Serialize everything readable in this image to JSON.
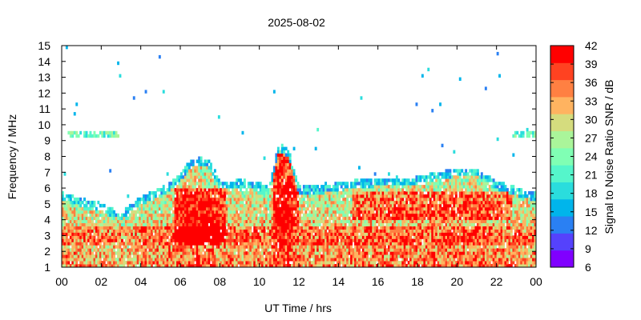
{
  "chart_data": {
    "type": "heatmap",
    "title": "2025-08-02",
    "xlabel": "UT Time / hrs",
    "ylabel": "Frequency / MHz",
    "colorbar_label": "Signal to Noise Ratio SNR / dB",
    "xlim": [
      0,
      24
    ],
    "ylim": [
      1,
      15
    ],
    "x_tick_labels": [
      "00",
      "02",
      "04",
      "06",
      "08",
      "10",
      "12",
      "14",
      "16",
      "18",
      "20",
      "22",
      "00"
    ],
    "y_tick_labels": [
      "1",
      "2",
      "3",
      "4",
      "5",
      "6",
      "7",
      "8",
      "9",
      "10",
      "11",
      "12",
      "13",
      "14",
      "15"
    ],
    "colorbar_ticks": [
      "6",
      "9",
      "12",
      "15",
      "18",
      "21",
      "24",
      "27",
      "30",
      "33",
      "36",
      "39",
      "42"
    ],
    "colorbar_range": [
      6,
      42
    ],
    "colormap": [
      "#8000ff",
      "#5542fc",
      "#2a80f3",
      "#00b5eb",
      "#2adddd",
      "#55f6cb",
      "#80ffb4",
      "#aaf59a",
      "#d5dc7e",
      "#ffb360",
      "#ff8042",
      "#ff4221",
      "#ff0000"
    ],
    "upper_frequency_limit_mhz": {
      "hours": [
        0,
        0.5,
        1,
        1.5,
        2,
        2.5,
        3,
        3.5,
        4,
        4.5,
        5,
        5.5,
        6,
        6.5,
        7,
        7.5,
        8,
        8.5,
        9,
        9.5,
        10,
        10.5,
        11,
        11.5,
        12,
        12.5,
        13,
        13.5,
        14,
        14.5,
        15,
        15.5,
        16,
        16.5,
        17,
        17.5,
        18,
        18.5,
        19,
        19.5,
        20,
        20.5,
        21,
        21.5,
        22,
        22.5,
        23,
        23.5,
        24
      ],
      "mhz": [
        5.6,
        5.4,
        5.2,
        5.1,
        4.9,
        4.6,
        4.4,
        4.8,
        5.3,
        5.6,
        5.9,
        6.2,
        6.8,
        7.6,
        7.8,
        7.6,
        6.3,
        6.3,
        6.4,
        6.3,
        6.2,
        6.0,
        8.8,
        8.2,
        6.0,
        6.0,
        6.0,
        6.1,
        6.2,
        6.3,
        6.4,
        6.4,
        6.5,
        6.5,
        6.5,
        6.5,
        6.6,
        6.7,
        6.9,
        7.0,
        7.1,
        7.1,
        7.1,
        6.8,
        6.3,
        6.1,
        5.9,
        5.7,
        5.6
      ]
    }
  }
}
